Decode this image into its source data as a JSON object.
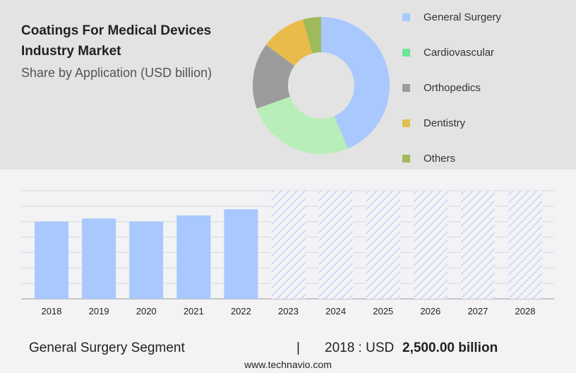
{
  "header": {
    "title_line1": "Coatings For Medical Devices",
    "title_line2": "Industry Market",
    "subtitle": "Share by Application (USD billion)"
  },
  "chart_data": [
    {
      "type": "pie",
      "donut": true,
      "categories": [
        "General Surgery",
        "Cardiovascular",
        "Orthopedics",
        "Dentistry",
        "Others"
      ],
      "values": [
        43.6,
        25.9,
        15.6,
        10.6,
        4.3
      ],
      "colors": [
        "#a8c8fe",
        "#b8eeb8",
        "#9c9c9c",
        "#e8bb4a",
        "#9fba5a"
      ],
      "legend_colors": [
        "#a8c8fe",
        "#6fe39a",
        "#9c9c9c",
        "#e0c050",
        "#9fba5a"
      ],
      "legend": "right"
    },
    {
      "type": "bar",
      "categories": [
        "2018",
        "2019",
        "2020",
        "2021",
        "2022",
        "2023",
        "2024",
        "2025",
        "2026",
        "2027",
        "2028"
      ],
      "values": [
        2500,
        2600,
        2500,
        2700,
        2900,
        null,
        null,
        null,
        null,
        null,
        null
      ],
      "forecast": [
        "2023",
        "2024",
        "2025",
        "2026",
        "2027",
        "2028"
      ],
      "ylim": [
        0,
        3500
      ],
      "grid": true,
      "color": "#a8c8fe"
    }
  ],
  "footer": {
    "segment": "General Surgery Segment",
    "divider": "|",
    "year_label": "2018 : USD",
    "value": "2,500.00 billion",
    "url": "www.technavio.com"
  }
}
